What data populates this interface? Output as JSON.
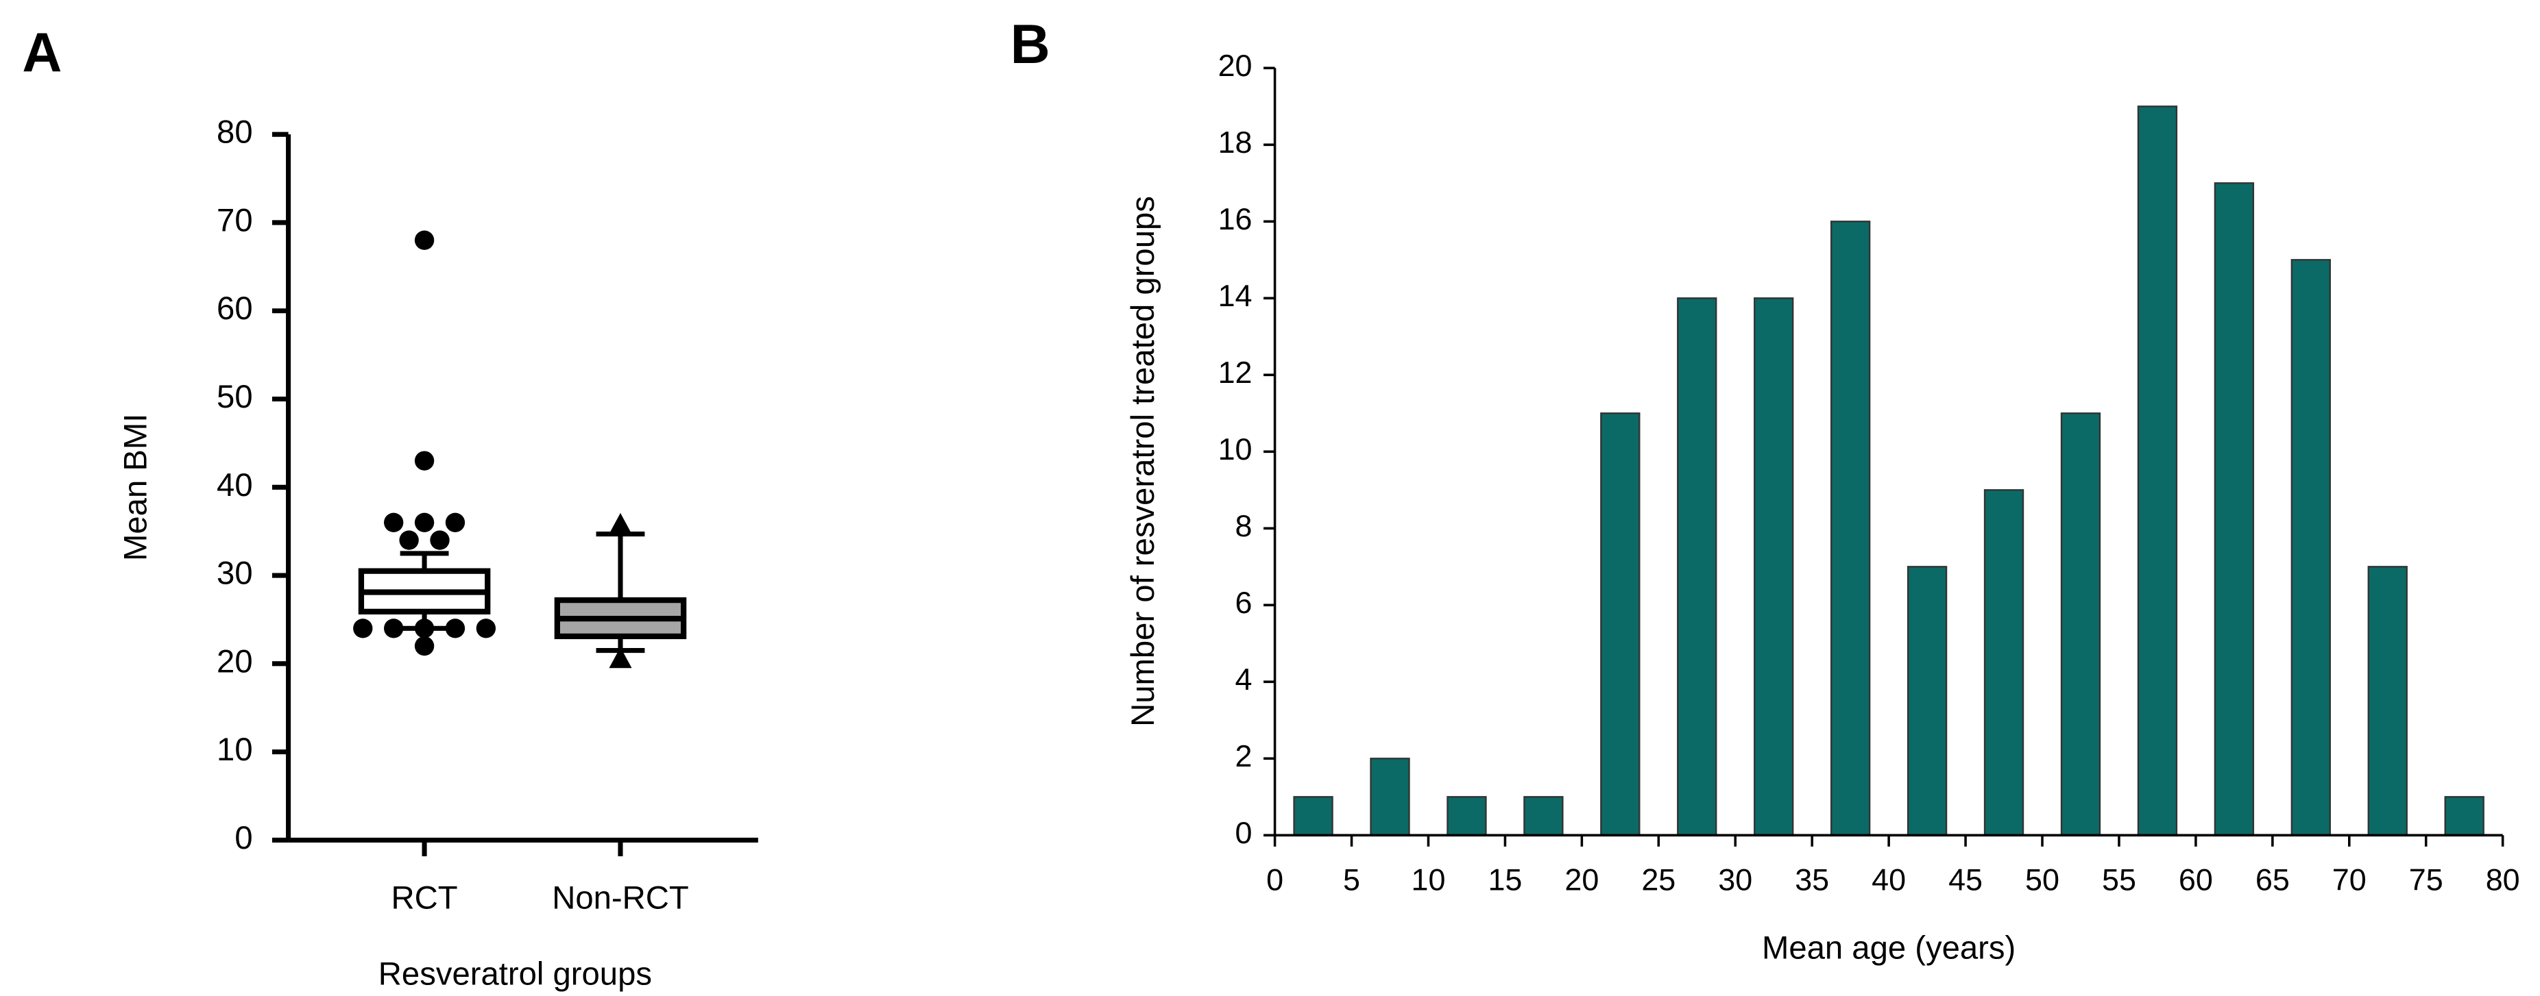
{
  "chart_data": [
    {
      "type": "box",
      "panel": "A",
      "ylabel": "Mean BMI",
      "xlabel": "Resveratrol groups",
      "categories": [
        "RCT",
        "Non-RCT"
      ],
      "boxes": [
        {
          "whislo": 24,
          "q1": 25.9,
          "med": 28.1,
          "q3": 30.5,
          "whishi": 32.5,
          "outliers": [
            68,
            43,
            36,
            36,
            36,
            34,
            34,
            24,
            24,
            24,
            24,
            24,
            22
          ],
          "color": "#ffffff",
          "marker": "circle"
        },
        {
          "whislo": 21.5,
          "q1": 23.1,
          "med": 25.1,
          "q3": 27.2,
          "whishi": 34.7,
          "outliers": [
            35.8,
            20.6
          ],
          "color": "#a6a6a6",
          "marker": "triangle"
        }
      ],
      "ylim": [
        0,
        80
      ],
      "yticks": [
        0,
        10,
        20,
        30,
        40,
        50,
        60,
        70,
        80
      ]
    },
    {
      "type": "histogram",
      "panel": "B",
      "ylabel": "Number of resveratrol treated groups",
      "xlabel": "Mean age (years)",
      "bins": [
        0,
        5,
        10,
        15,
        20,
        25,
        30,
        35,
        40,
        45,
        50,
        55,
        60,
        65,
        70,
        75,
        80
      ],
      "values": [
        1,
        2,
        1,
        1,
        11,
        14,
        14,
        16,
        7,
        9,
        11,
        19,
        17,
        15,
        7,
        1
      ],
      "color": "#0b6a66",
      "xlim": [
        0,
        80
      ],
      "xticks": [
        0,
        5,
        10,
        15,
        20,
        25,
        30,
        35,
        40,
        45,
        50,
        55,
        60,
        65,
        70,
        75,
        80
      ],
      "ylim": [
        0,
        20
      ],
      "yticks": [
        0,
        2,
        4,
        6,
        8,
        10,
        12,
        14,
        16,
        18,
        20
      ]
    }
  ]
}
